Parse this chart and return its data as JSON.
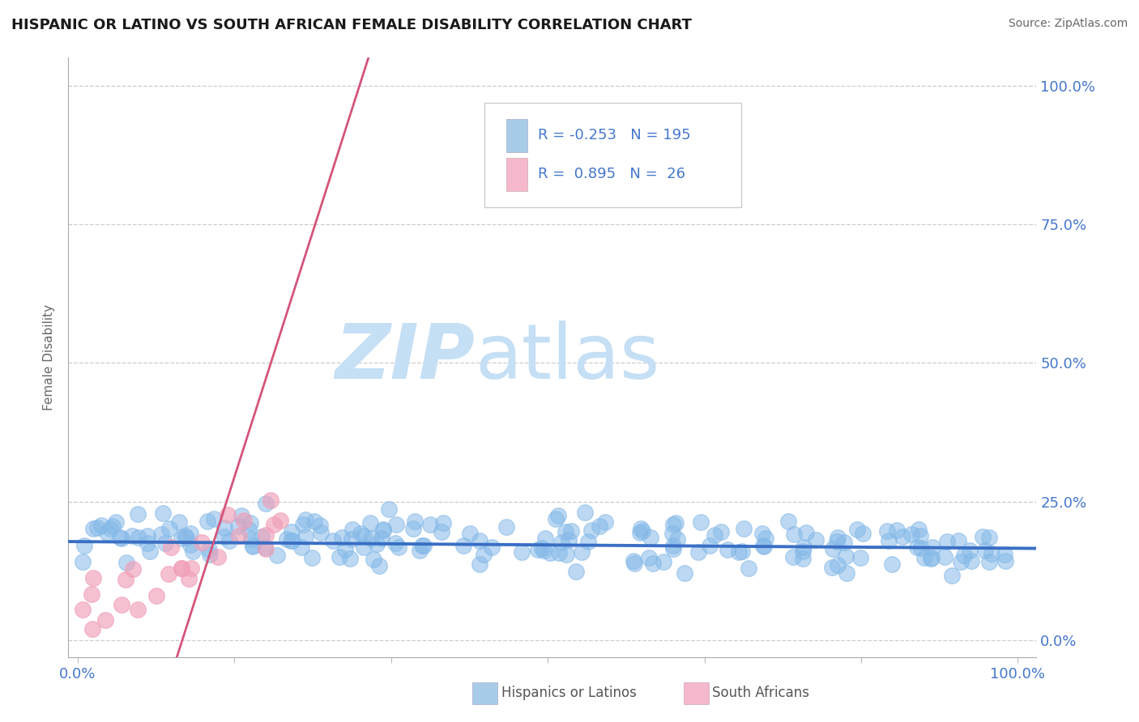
{
  "title": "HISPANIC OR LATINO VS SOUTH AFRICAN FEMALE DISABILITY CORRELATION CHART",
  "source": "Source: ZipAtlas.com",
  "ylabel": "Female Disability",
  "watermark_zip": "ZIP",
  "watermark_atlas": "atlas",
  "blue_scatter_color": "#85b9e8",
  "blue_scatter_edge": "#85b9e8",
  "pink_scatter_color": "#f0a0b8",
  "pink_scatter_edge": "#f0a0b8",
  "blue_line_color": "#3a6fc4",
  "pink_line_color": "#d4557a",
  "title_color": "#1a1a1a",
  "title_fontsize": 13,
  "source_color": "#666666",
  "source_fontsize": 10,
  "tick_label_color": "#4477cc",
  "grid_color": "#cccccc",
  "background_color": "#ffffff",
  "watermark_color": "#c5dff5",
  "blue_R": -0.253,
  "blue_N": 195,
  "pink_R": 0.895,
  "pink_N": 26,
  "blue_seed": 42,
  "pink_seed": 7,
  "legend_blue_color": "#a8cce8",
  "legend_pink_color": "#f5b8cc",
  "legend_text_color": "#333333",
  "bottom_legend_text_color": "#555555"
}
